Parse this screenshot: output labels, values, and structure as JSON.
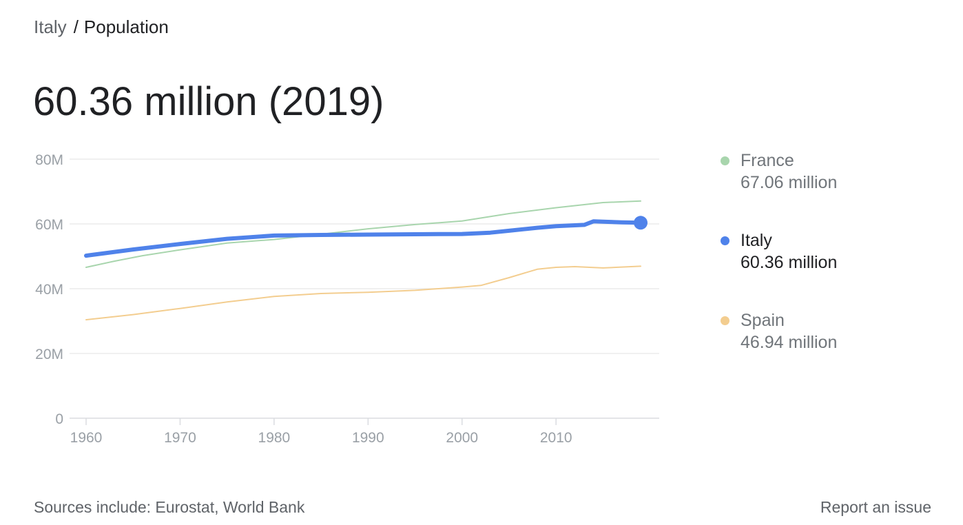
{
  "breadcrumb": {
    "parent": "Italy",
    "separator": "/",
    "current": "Population"
  },
  "headline": "60.36 million (2019)",
  "colors": {
    "France": "#a8d5ad",
    "Italy": "#4f82ea",
    "Spain": "#f3cd8f",
    "grid": "#ebebeb",
    "axis_text": "#9aa0a6"
  },
  "legend": [
    {
      "name": "France",
      "value": "67.06 million",
      "state": "muted"
    },
    {
      "name": "Italy",
      "value": "60.36 million",
      "state": "active"
    },
    {
      "name": "Spain",
      "value": "46.94 million",
      "state": "muted"
    }
  ],
  "chart_data": {
    "type": "line",
    "ylim": [
      0,
      80
    ],
    "xlim": [
      1960,
      2019
    ],
    "y_ticks": [
      {
        "value": 0,
        "label": "0"
      },
      {
        "value": 20,
        "label": "20M"
      },
      {
        "value": 40,
        "label": "40M"
      },
      {
        "value": 60,
        "label": "60M"
      },
      {
        "value": 80,
        "label": "80M"
      }
    ],
    "x_ticks": [
      1960,
      1970,
      1980,
      1990,
      2000,
      2010
    ],
    "grid": true,
    "legend_position": "right",
    "highlight": {
      "series": "Italy",
      "x": 2019,
      "y": 60.36
    },
    "series": [
      {
        "name": "France",
        "emphasis": false,
        "x": [
          1960,
          1963,
          1966,
          1970,
          1975,
          1980,
          1985,
          1990,
          1995,
          2000,
          2005,
          2010,
          2015,
          2019
        ],
        "y": [
          46.6,
          48.5,
          50.2,
          52.0,
          54.1,
          55.2,
          56.8,
          58.5,
          59.8,
          60.9,
          63.2,
          65.0,
          66.6,
          67.06
        ]
      },
      {
        "name": "Italy",
        "emphasis": true,
        "x": [
          1960,
          1965,
          1970,
          1975,
          1980,
          1985,
          1990,
          1995,
          2000,
          2003,
          2005,
          2008,
          2010,
          2013,
          2014,
          2015,
          2017,
          2019
        ],
        "y": [
          50.2,
          52.1,
          53.8,
          55.4,
          56.4,
          56.6,
          56.7,
          56.8,
          56.9,
          57.3,
          57.9,
          58.8,
          59.3,
          59.7,
          60.8,
          60.7,
          60.5,
          60.36
        ]
      },
      {
        "name": "Spain",
        "emphasis": false,
        "x": [
          1960,
          1965,
          1970,
          1975,
          1980,
          1985,
          1990,
          1995,
          2000,
          2002,
          2005,
          2008,
          2010,
          2012,
          2015,
          2019
        ],
        "y": [
          30.4,
          32.0,
          33.9,
          35.9,
          37.6,
          38.5,
          38.9,
          39.5,
          40.5,
          41.0,
          43.4,
          46.0,
          46.6,
          46.8,
          46.4,
          46.94
        ]
      }
    ]
  },
  "footer": {
    "sources": "Sources include: Eurostat, World Bank",
    "report": "Report an issue"
  }
}
